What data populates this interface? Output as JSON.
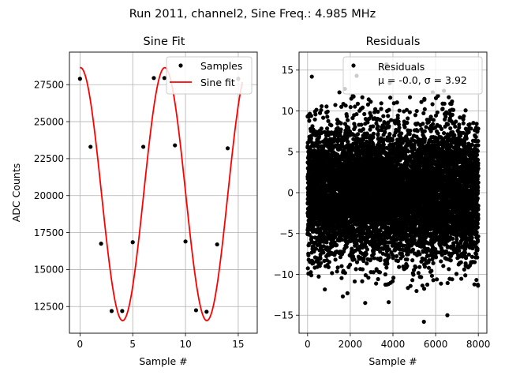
{
  "suptitle": "Run 2011, channel2, Sine Freq.: 4.985 MHz",
  "chart_data": [
    {
      "type": "scatter+line",
      "title": "Sine Fit",
      "xlabel": "Sample #",
      "ylabel": "ADC Counts",
      "xlim": [
        -1,
        16.8
      ],
      "ylim": [
        10700,
        29700
      ],
      "xticks": [
        0,
        5,
        10,
        15
      ],
      "xtick_labels": [
        "0",
        "5",
        "10",
        "15"
      ],
      "yticks": [
        12500,
        15000,
        17500,
        20000,
        22500,
        25000,
        27500
      ],
      "ytick_labels": [
        "12500",
        "15000",
        "17500",
        "20000",
        "22500",
        "25000",
        "27500"
      ],
      "grid": true,
      "legend": {
        "placement": "top-right",
        "entries": [
          "Samples",
          "Sine fit"
        ]
      },
      "series": [
        {
          "name": "Samples",
          "kind": "scatter",
          "color": "#000000",
          "x": [
            0,
            1,
            2,
            3,
            4,
            5,
            6,
            7,
            8,
            9,
            10,
            11,
            12,
            13,
            14,
            15
          ],
          "y": [
            27900,
            23300,
            16750,
            12200,
            12200,
            16850,
            23300,
            27950,
            27950,
            23400,
            16900,
            12250,
            12150,
            16700,
            23200,
            27900
          ]
        },
        {
          "name": "Sine fit",
          "kind": "line",
          "color": "#ff0000",
          "function": "sine",
          "amplitude": 8550,
          "offset": 20100,
          "period": 7.98,
          "phase_peak_x": 0.05,
          "x_range": [
            0,
            15.4
          ]
        }
      ]
    },
    {
      "type": "scatter",
      "title": "Residuals",
      "xlabel": "Sample #",
      "xlim": [
        -400,
        8400
      ],
      "ylim": [
        -17.2,
        17.2
      ],
      "xticks": [
        0,
        2000,
        4000,
        6000,
        8000
      ],
      "xtick_labels": [
        "0",
        "2000",
        "4000",
        "6000",
        "8000"
      ],
      "yticks": [
        -15,
        -10,
        -5,
        0,
        5,
        10,
        15
      ],
      "ytick_labels": [
        "−15",
        "−10",
        "−5",
        "0",
        "5",
        "10",
        "15"
      ],
      "grid": true,
      "legend": {
        "placement": "top-right",
        "entries": [
          "Residuals"
        ],
        "stats_text": "μ = -0.0, σ = 3.92"
      },
      "series": [
        {
          "name": "Residuals",
          "color": "#000000",
          "n_points": 8000,
          "mean": 0.0,
          "std": 3.92,
          "notable_points": [
            [
              200,
              14.2
            ],
            [
              1750,
              12.7
            ],
            [
              2300,
              14.3
            ],
            [
              3700,
              15.7
            ],
            [
              3850,
              13.4
            ],
            [
              5450,
              -15.8
            ],
            [
              6550,
              -15.0
            ],
            [
              1650,
              -12.7
            ],
            [
              2700,
              -13.5
            ],
            [
              3800,
              -13.4
            ]
          ]
        }
      ]
    }
  ]
}
